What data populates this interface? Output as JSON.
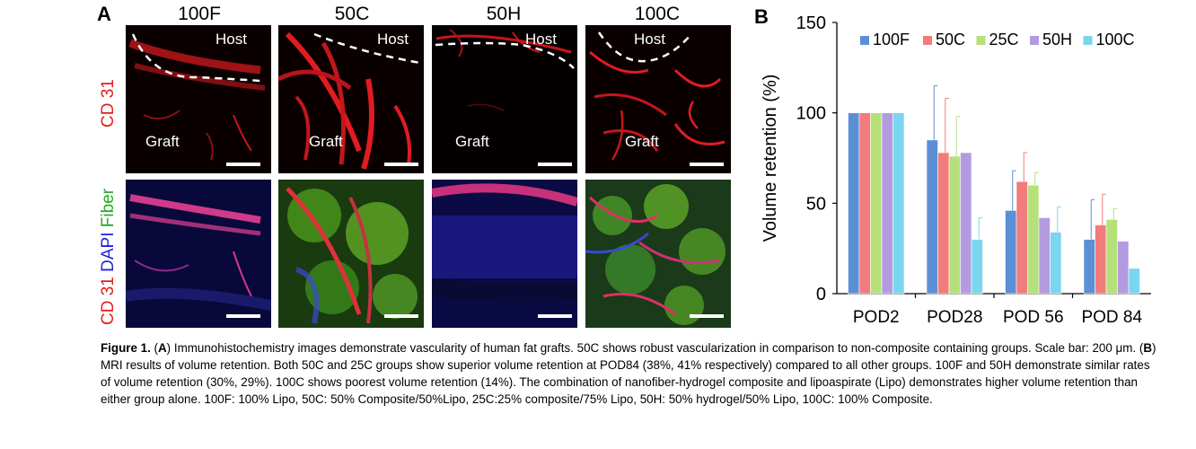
{
  "panel_a": {
    "letter": "A",
    "columns": [
      "100F",
      "50C",
      "50H",
      "100C"
    ],
    "host_label": "Host",
    "graft_label": "Graft",
    "row1_label": "CD 31",
    "row2_label": {
      "cd31": "CD 31",
      "dapi": "DAPI",
      "fiber": "Fiber"
    }
  },
  "panel_b": {
    "letter": "B"
  },
  "chart_data": {
    "type": "bar",
    "categories": [
      "POD2",
      "POD28",
      "POD 56",
      "POD 84"
    ],
    "series": [
      {
        "name": "100F",
        "color": "#5b8fd6",
        "values": [
          100,
          85,
          46,
          30
        ],
        "errors": [
          0,
          30,
          22,
          22
        ]
      },
      {
        "name": "50C",
        "color": "#f27b7b",
        "values": [
          100,
          78,
          62,
          38
        ],
        "errors": [
          0,
          30,
          16,
          17
        ]
      },
      {
        "name": "25C",
        "color": "#b5e07a",
        "values": [
          100,
          76,
          60,
          41
        ],
        "errors": [
          0,
          22,
          7,
          6
        ]
      },
      {
        "name": "50H",
        "color": "#b39be0",
        "values": [
          100,
          78,
          42,
          29
        ],
        "errors": [
          0,
          0,
          0,
          0
        ]
      },
      {
        "name": "100C",
        "color": "#7ad6ee",
        "values": [
          100,
          30,
          34,
          14
        ],
        "errors": [
          0,
          12,
          14,
          0
        ]
      }
    ],
    "ylabel": "Volume retention (%)",
    "ylim": [
      0,
      150
    ],
    "yticks": [
      0,
      50,
      100,
      150
    ],
    "legend": "top",
    "grid": false
  },
  "caption": {
    "fig": "Figure 1.",
    "p1a": " (",
    "A": "A",
    "p1b": ") Immunohistochemistry images demonstrate vascularity of human fat grafts. 50C shows robust vascularization in comparison to non-composite containing groups. Scale bar: 200 μm. (",
    "B": "B",
    "p2": ") MRI results of volume retention. Both 50C and 25C groups show superior volume retention at POD84 (38%, 41% respectively) compared to all other groups. 100F and 50H demonstrate similar rates of volume retention (30%, 29%). 100C shows poorest volume retention (14%). The combination of nanofiber-hydrogel composite and lipoaspirate (Lipo) demonstrates higher volume retention than either group alone. 100F: 100% Lipo, 50C: 50% Composite/50%Lipo, 25C:25% composite/75% Lipo, 50H: 50% hydrogel/50% Lipo, 100C: 100% Composite."
  }
}
